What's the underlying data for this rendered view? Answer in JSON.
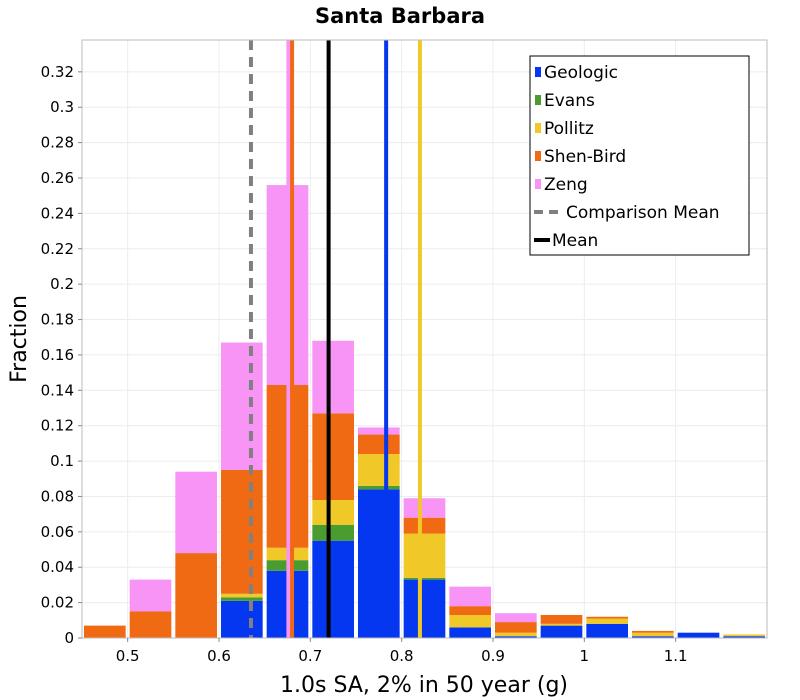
{
  "chart_data": {
    "type": "bar",
    "stacked": true,
    "title": "Santa Barbara",
    "xlabel": "1.0s SA, 2% in 50 year (g)",
    "ylabel": "Fraction",
    "xlim": [
      0.45,
      1.2
    ],
    "ylim": [
      0,
      0.338
    ],
    "bin_width": 0.05,
    "x_ticks": [
      0.5,
      0.6,
      0.7,
      0.8,
      0.9,
      1,
      1.1
    ],
    "x_tick_labels": [
      "0.5",
      "0.6",
      "0.7",
      "0.8",
      "0.9",
      "1",
      "1.1"
    ],
    "y_ticks": [
      0,
      0.02,
      0.04,
      0.06,
      0.08,
      0.1,
      0.12,
      0.14,
      0.16,
      0.18,
      0.2,
      0.22,
      0.24,
      0.26,
      0.28,
      0.3,
      0.32
    ],
    "y_tick_labels": [
      "0",
      "0.02",
      "0.04",
      "0.06",
      "0.08",
      "0.1",
      "0.12",
      "0.14",
      "0.16",
      "0.18",
      "0.2",
      "0.22",
      "0.24",
      "0.26",
      "0.28",
      "0.3",
      "0.32"
    ],
    "grid": true,
    "legend_position": "top-right",
    "x": [
      0.475,
      0.525,
      0.575,
      0.625,
      0.675,
      0.725,
      0.775,
      0.825,
      0.875,
      0.925,
      0.975,
      1.025,
      1.075,
      1.125,
      1.175
    ],
    "series": [
      {
        "name": "Geologic",
        "color": "#0536f0",
        "values": [
          0,
          0,
          0,
          0.021,
          0.038,
          0.055,
          0.084,
          0.033,
          0.006,
          0.001,
          0.007,
          0.008,
          0.001,
          0.003,
          0.001
        ]
      },
      {
        "name": "Evans",
        "color": "#4a9c2f",
        "values": [
          0,
          0,
          0,
          0.002,
          0.006,
          0.009,
          0.002,
          0.001,
          0,
          0,
          0,
          0,
          0,
          0,
          0
        ]
      },
      {
        "name": "Pollitz",
        "color": "#f0c828",
        "values": [
          0,
          0,
          0,
          0.002,
          0.007,
          0.014,
          0.018,
          0.025,
          0.007,
          0.002,
          0.001,
          0.003,
          0.002,
          0,
          0.001
        ]
      },
      {
        "name": "Shen-Bird",
        "color": "#f06a14",
        "values": [
          0.007,
          0.015,
          0.048,
          0.07,
          0.092,
          0.049,
          0.011,
          0.009,
          0.005,
          0.006,
          0.005,
          0.001,
          0.001,
          0,
          0
        ]
      },
      {
        "name": "Zeng",
        "color": "#f794f5",
        "values": [
          0,
          0.018,
          0.046,
          0.072,
          0.113,
          0.041,
          0.004,
          0.011,
          0.011,
          0.005,
          0,
          0,
          0,
          0,
          0
        ]
      }
    ],
    "vlines": [
      {
        "name": "Comparison Mean",
        "x": 0.635,
        "color": "#808080",
        "style": "dashed",
        "in_legend": true
      },
      {
        "name": "Mean",
        "x": 0.72,
        "color": "#000000",
        "style": "solid",
        "in_legend": true
      },
      {
        "name": "Geologic",
        "x": 0.783,
        "color": "#0536f0",
        "style": "solid",
        "in_legend": false
      },
      {
        "name": "Pollitz",
        "x": 0.82,
        "color": "#f0c828",
        "style": "solid",
        "in_legend": false
      },
      {
        "name": "Shen-Bird",
        "x": 0.68,
        "color": "#f06a14",
        "style": "solid",
        "in_legend": false
      },
      {
        "name": "Zeng",
        "x": 0.676,
        "color": "#f794f5",
        "style": "solid",
        "in_legend": false
      }
    ],
    "legend": [
      {
        "label": "Geologic",
        "kind": "box",
        "color": "#0536f0"
      },
      {
        "label": "Evans",
        "kind": "box",
        "color": "#4a9c2f"
      },
      {
        "label": "Pollitz",
        "kind": "box",
        "color": "#f0c828"
      },
      {
        "label": "Shen-Bird",
        "kind": "box",
        "color": "#f06a14"
      },
      {
        "label": "Zeng",
        "kind": "box",
        "color": "#f794f5"
      },
      {
        "label": "Comparison Mean",
        "kind": "dashed-line",
        "color": "#808080"
      },
      {
        "label": "Mean",
        "kind": "line",
        "color": "#000000"
      }
    ]
  }
}
